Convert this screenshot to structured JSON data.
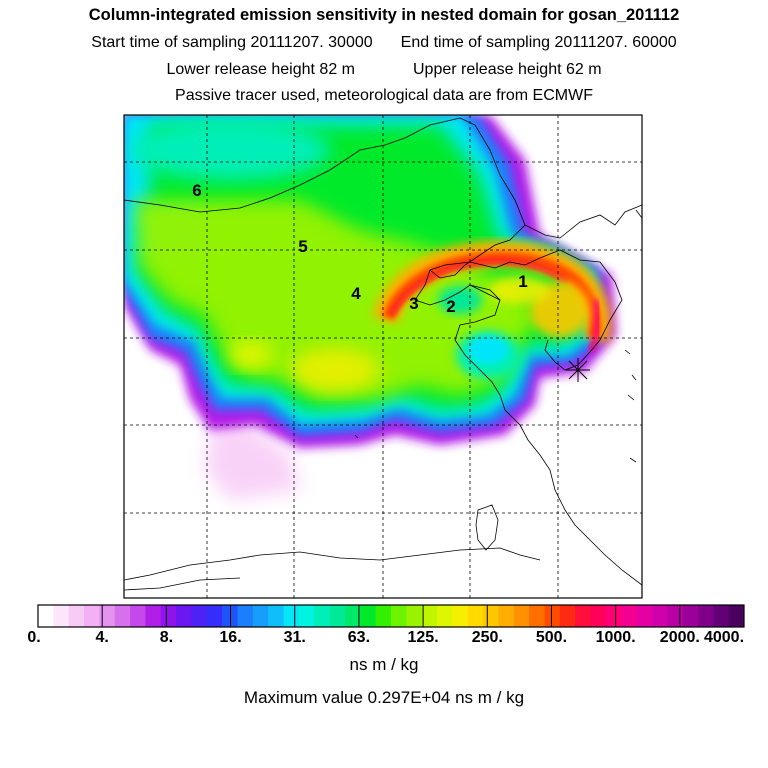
{
  "header": {
    "title": "Column-integrated emission sensitivity in nested domain for gosan_201112",
    "start_label": "Start time of sampling 20111207. 30000",
    "end_label": "End time of sampling 20111207. 60000",
    "lower_release": "Lower release height   82 m",
    "upper_release": "Upper release height   62 m",
    "tracer_note": "Passive tracer used, meteorological data are from ECMWF"
  },
  "map": {
    "labels": [
      "1",
      "2",
      "3",
      "4",
      "5",
      "6"
    ],
    "receptor_icon": "star-marker-icon"
  },
  "colorbar": {
    "tick_labels": [
      "0.",
      "4.",
      "8.",
      "16.",
      "31.",
      "63.",
      "125.",
      "250.",
      "500.",
      "1000.",
      "2000.",
      "4000."
    ],
    "colors": [
      "#ffffff",
      "#fde6fb",
      "#f8cbf7",
      "#f3b0f4",
      "#e693ef",
      "#d670ec",
      "#c448ea",
      "#b21ee8",
      "#8f14ec",
      "#6a17f1",
      "#4d22f7",
      "#352dfc",
      "#1e55fb",
      "#1b7efa",
      "#169ffa",
      "#10bffa",
      "#05e6f8",
      "#00f5e0",
      "#00efb8",
      "#00e898",
      "#00e86a",
      "#00ea2a",
      "#33ef00",
      "#6df200",
      "#99f300",
      "#c0f500",
      "#def600",
      "#f7ef00",
      "#ffdb00",
      "#ffc700",
      "#ffae00",
      "#ff9000",
      "#ff6f00",
      "#ff4c00",
      "#ff2a14",
      "#ff0f3a",
      "#ff005a",
      "#ff0078",
      "#f40090",
      "#e500a4",
      "#d000aa",
      "#b800a5",
      "#9b009a",
      "#80008a",
      "#640076",
      "#4a005e"
    ],
    "unit_label": "ns m / kg",
    "max_value": "Maximum value  0.297E+04 ns m / kg"
  }
}
